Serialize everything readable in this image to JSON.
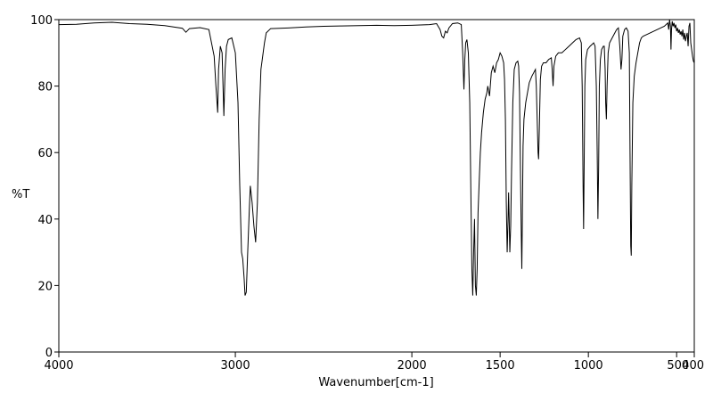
{
  "chart_data": {
    "type": "line",
    "title": "",
    "xlabel": "Wavenumber[cm-1]",
    "ylabel": "%T",
    "xlim": [
      4000,
      400
    ],
    "ylim": [
      0,
      100
    ],
    "x_reversed": true,
    "grid": false,
    "legend": "none",
    "xticks": [
      {
        "value": 4000,
        "label": "4000"
      },
      {
        "value": 3000,
        "label": "3000"
      },
      {
        "value": 2000,
        "label": "2000"
      },
      {
        "value": 1500,
        "label": "1500"
      },
      {
        "value": 1000,
        "label": "1000"
      },
      {
        "value": 500,
        "label": "500"
      },
      {
        "value": 400,
        "label": "400"
      }
    ],
    "yticks": [
      {
        "value": 0,
        "label": "0"
      },
      {
        "value": 20,
        "label": "20"
      },
      {
        "value": 40,
        "label": "40"
      },
      {
        "value": 60,
        "label": "60"
      },
      {
        "value": 80,
        "label": "80"
      },
      {
        "value": 100,
        "label": "100"
      }
    ],
    "series": [
      {
        "color": "#000000",
        "points": [
          [
            4000,
            98.5
          ],
          [
            3900,
            98.6
          ],
          [
            3800,
            99.0
          ],
          [
            3700,
            99.2
          ],
          [
            3600,
            98.8
          ],
          [
            3500,
            98.6
          ],
          [
            3400,
            98.2
          ],
          [
            3350,
            97.8
          ],
          [
            3300,
            97.4
          ],
          [
            3280,
            96.2
          ],
          [
            3260,
            97.3
          ],
          [
            3200,
            97.6
          ],
          [
            3150,
            97.0
          ],
          [
            3120,
            89.0
          ],
          [
            3110,
            80.0
          ],
          [
            3100,
            72.0
          ],
          [
            3095,
            85.0
          ],
          [
            3085,
            92.0
          ],
          [
            3075,
            90.0
          ],
          [
            3065,
            71.0
          ],
          [
            3058,
            85.0
          ],
          [
            3050,
            92.0
          ],
          [
            3040,
            94.0
          ],
          [
            3020,
            94.5
          ],
          [
            3000,
            90.0
          ],
          [
            2985,
            75.0
          ],
          [
            2975,
            50.0
          ],
          [
            2965,
            30.0
          ],
          [
            2958,
            28.0
          ],
          [
            2950,
            22.0
          ],
          [
            2945,
            17.0
          ],
          [
            2938,
            18.0
          ],
          [
            2930,
            30.0
          ],
          [
            2920,
            44.0
          ],
          [
            2915,
            50.0
          ],
          [
            2905,
            45.0
          ],
          [
            2895,
            38.0
          ],
          [
            2885,
            33.0
          ],
          [
            2875,
            45.0
          ],
          [
            2865,
            70.0
          ],
          [
            2855,
            85.0
          ],
          [
            2845,
            89.0
          ],
          [
            2835,
            93.0
          ],
          [
            2825,
            96.0
          ],
          [
            2800,
            97.3
          ],
          [
            2700,
            97.5
          ],
          [
            2600,
            97.8
          ],
          [
            2500,
            98.0
          ],
          [
            2400,
            98.1
          ],
          [
            2300,
            98.2
          ],
          [
            2200,
            98.3
          ],
          [
            2100,
            98.2
          ],
          [
            2000,
            98.3
          ],
          [
            1900,
            98.5
          ],
          [
            1860,
            98.8
          ],
          [
            1840,
            97.0
          ],
          [
            1830,
            95.0
          ],
          [
            1820,
            94.5
          ],
          [
            1810,
            96.5
          ],
          [
            1800,
            96.0
          ],
          [
            1790,
            97.5
          ],
          [
            1770,
            98.8
          ],
          [
            1740,
            99.0
          ],
          [
            1720,
            98.5
          ],
          [
            1712,
            90.0
          ],
          [
            1705,
            79.0
          ],
          [
            1700,
            88.0
          ],
          [
            1695,
            93.0
          ],
          [
            1688,
            94.0
          ],
          [
            1680,
            90.0
          ],
          [
            1672,
            75.0
          ],
          [
            1665,
            45.0
          ],
          [
            1660,
            25.0
          ],
          [
            1655,
            17.0
          ],
          [
            1650,
            30.0
          ],
          [
            1645,
            40.0
          ],
          [
            1640,
            20.0
          ],
          [
            1635,
            17.0
          ],
          [
            1630,
            25.0
          ],
          [
            1625,
            42.0
          ],
          [
            1618,
            52.0
          ],
          [
            1612,
            60.0
          ],
          [
            1605,
            66.0
          ],
          [
            1595,
            72.0
          ],
          [
            1585,
            76.0
          ],
          [
            1575,
            78.0
          ],
          [
            1570,
            80.0
          ],
          [
            1560,
            77.0
          ],
          [
            1550,
            84.0
          ],
          [
            1540,
            86.0
          ],
          [
            1530,
            84.0
          ],
          [
            1520,
            87.0
          ],
          [
            1510,
            88.0
          ],
          [
            1500,
            90.0
          ],
          [
            1490,
            89.0
          ],
          [
            1480,
            87.0
          ],
          [
            1475,
            82.0
          ],
          [
            1470,
            70.0
          ],
          [
            1465,
            45.0
          ],
          [
            1460,
            30.0
          ],
          [
            1455,
            40.0
          ],
          [
            1452,
            48.0
          ],
          [
            1448,
            38.0
          ],
          [
            1445,
            30.0
          ],
          [
            1440,
            38.0
          ],
          [
            1435,
            55.0
          ],
          [
            1428,
            75.0
          ],
          [
            1420,
            85.0
          ],
          [
            1410,
            87.0
          ],
          [
            1400,
            87.5
          ],
          [
            1395,
            86.0
          ],
          [
            1390,
            78.0
          ],
          [
            1385,
            55.0
          ],
          [
            1380,
            35.0
          ],
          [
            1377,
            25.0
          ],
          [
            1374,
            40.0
          ],
          [
            1370,
            62.0
          ],
          [
            1365,
            70.0
          ],
          [
            1355,
            75.0
          ],
          [
            1345,
            78.0
          ],
          [
            1335,
            81.0
          ],
          [
            1320,
            83.0
          ],
          [
            1310,
            84.0
          ],
          [
            1300,
            85.0
          ],
          [
            1295,
            80.0
          ],
          [
            1290,
            70.0
          ],
          [
            1285,
            60.0
          ],
          [
            1282,
            58.0
          ],
          [
            1278,
            67.0
          ],
          [
            1272,
            82.0
          ],
          [
            1265,
            86.0
          ],
          [
            1255,
            87.0
          ],
          [
            1240,
            87.0
          ],
          [
            1225,
            88.0
          ],
          [
            1210,
            88.5
          ],
          [
            1205,
            85.0
          ],
          [
            1200,
            80.0
          ],
          [
            1195,
            86.0
          ],
          [
            1185,
            89.0
          ],
          [
            1170,
            90.0
          ],
          [
            1150,
            90.0
          ],
          [
            1130,
            91.0
          ],
          [
            1110,
            92.0
          ],
          [
            1090,
            93.0
          ],
          [
            1070,
            94.0
          ],
          [
            1050,
            94.5
          ],
          [
            1040,
            93.0
          ],
          [
            1035,
            80.0
          ],
          [
            1030,
            50.0
          ],
          [
            1027,
            37.0
          ],
          [
            1024,
            55.0
          ],
          [
            1020,
            80.0
          ],
          [
            1015,
            88.0
          ],
          [
            1005,
            91.0
          ],
          [
            990,
            92.0
          ],
          [
            980,
            92.5
          ],
          [
            970,
            93.0
          ],
          [
            962,
            92.0
          ],
          [
            955,
            80.0
          ],
          [
            950,
            60.0
          ],
          [
            946,
            40.0
          ],
          [
            942,
            55.0
          ],
          [
            938,
            80.0
          ],
          [
            932,
            88.0
          ],
          [
            925,
            91.0
          ],
          [
            915,
            92.0
          ],
          [
            910,
            92.0
          ],
          [
            905,
            85.0
          ],
          [
            902,
            75.0
          ],
          [
            898,
            70.0
          ],
          [
            894,
            80.0
          ],
          [
            888,
            90.0
          ],
          [
            880,
            93.0
          ],
          [
            870,
            94.0
          ],
          [
            860,
            95.0
          ],
          [
            850,
            96.0
          ],
          [
            840,
            97.0
          ],
          [
            830,
            97.5
          ],
          [
            822,
            92.0
          ],
          [
            815,
            85.0
          ],
          [
            810,
            88.0
          ],
          [
            805,
            95.0
          ],
          [
            795,
            97.0
          ],
          [
            785,
            97.5
          ],
          [
            775,
            96.5
          ],
          [
            768,
            90.0
          ],
          [
            764,
            60.0
          ],
          [
            760,
            32.0
          ],
          [
            757,
            29.0
          ],
          [
            754,
            50.0
          ],
          [
            748,
            75.0
          ],
          [
            740,
            83.0
          ],
          [
            730,
            87.0
          ],
          [
            720,
            90.0
          ],
          [
            710,
            93.0
          ],
          [
            700,
            94.5
          ],
          [
            690,
            95.0
          ],
          [
            670,
            95.5
          ],
          [
            650,
            96.0
          ],
          [
            630,
            96.5
          ],
          [
            610,
            97.0
          ],
          [
            590,
            97.5
          ],
          [
            570,
            98.0
          ],
          [
            560,
            98.5
          ],
          [
            550,
            99.0
          ],
          [
            545,
            97.0
          ],
          [
            540,
            100.0
          ],
          [
            535,
            98.0
          ],
          [
            532,
            91.0
          ],
          [
            529,
            97.0
          ],
          [
            525,
            99.5
          ],
          [
            520,
            98.0
          ],
          [
            515,
            99.0
          ],
          [
            510,
            97.5
          ],
          [
            505,
            98.5
          ],
          [
            500,
            96.5
          ],
          [
            495,
            97.5
          ],
          [
            490,
            96.0
          ],
          [
            485,
            97.0
          ],
          [
            480,
            95.5
          ],
          [
            475,
            96.5
          ],
          [
            470,
            95.0
          ],
          [
            465,
            97.0
          ],
          [
            460,
            94.0
          ],
          [
            455,
            96.0
          ],
          [
            450,
            93.5
          ],
          [
            445,
            95.0
          ],
          [
            440,
            96.0
          ],
          [
            435,
            92.0
          ],
          [
            430,
            98.0
          ],
          [
            425,
            99.0
          ],
          [
            420,
            93.0
          ],
          [
            415,
            91.0
          ],
          [
            410,
            89.0
          ],
          [
            405,
            87.5
          ],
          [
            400,
            87.0
          ]
        ]
      }
    ]
  }
}
